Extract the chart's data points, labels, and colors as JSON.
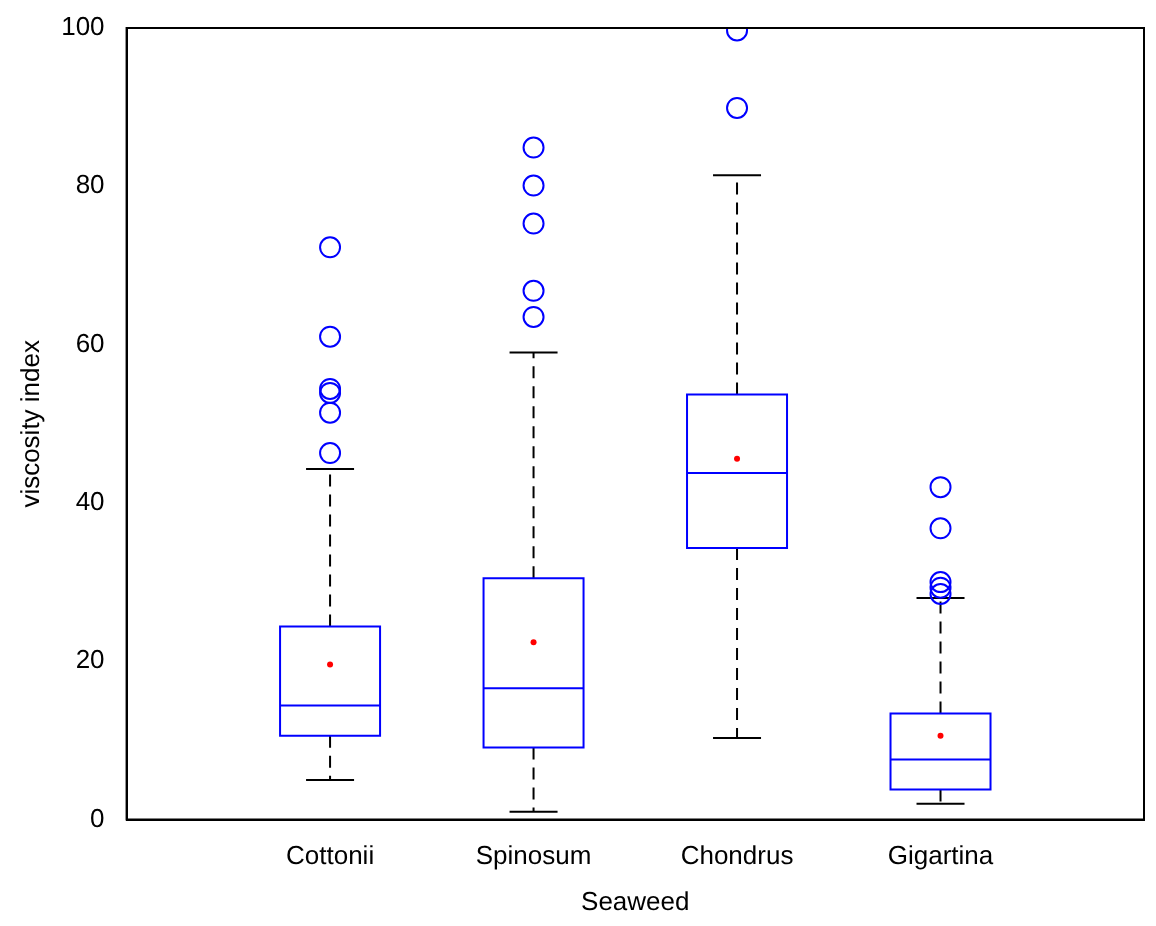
{
  "chart_data": {
    "type": "box",
    "xlabel": "Seaweed",
    "ylabel": "viscosity index",
    "categories": [
      "Cottonii",
      "Spinosum",
      "Chondrus",
      "Gigartina"
    ],
    "ylim": [
      0,
      100
    ],
    "yticks": [
      0,
      20,
      40,
      60,
      80,
      100
    ],
    "grid": false,
    "legend": false,
    "series": [
      {
        "color": "#0000ff",
        "boxes": [
          {
            "low": 5,
            "q1": 10.6,
            "median": 14.4,
            "q3": 24.4,
            "high": 44.3,
            "mean": 19.6,
            "outliers": [
              46.3,
              51.4,
              53.9,
              54.4,
              61,
              72.3
            ]
          },
          {
            "low": 1,
            "q1": 9.1,
            "median": 16.6,
            "q3": 30.5,
            "high": 59,
            "mean": 22.4,
            "outliers": [
              63.5,
              66.8,
              75.3,
              80.1,
              84.9
            ]
          },
          {
            "low": 10.3,
            "q1": 34.3,
            "median": 43.8,
            "q3": 53.7,
            "high": 81.4,
            "mean": 45.6,
            "outliers": [
              89.9,
              99.7
            ]
          },
          {
            "low": 2,
            "q1": 3.8,
            "median": 7.6,
            "q3": 13.4,
            "high": 28,
            "mean": 10.6,
            "outliers": [
              28.5,
              29.3,
              30,
              36.8,
              42
            ]
          }
        ]
      }
    ]
  }
}
